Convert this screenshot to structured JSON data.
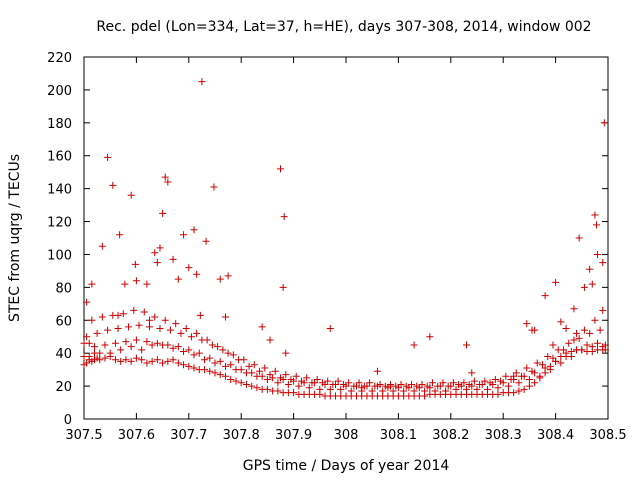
{
  "chart_data": {
    "type": "scatter",
    "title": "Rec. pdel (Lon=334, Lat=37, h=HE), days 307-308, 2014, window 002",
    "xlabel": "GPS time / Days of year 2014",
    "ylabel": "STEC from uqrg / TECUs",
    "xlim": [
      307.5,
      308.5
    ],
    "ylim": [
      0,
      220
    ],
    "xticks": [
      307.5,
      307.6,
      307.7,
      307.8,
      307.9,
      308.0,
      308.1,
      308.2,
      308.3,
      308.4,
      308.5
    ],
    "xtick_labels": [
      "307.5",
      "307.6",
      "307.7",
      "307.8",
      "307.9",
      "308",
      "308.1",
      "308.2",
      "308.3",
      "308.4",
      "308.5"
    ],
    "yticks": [
      0,
      20,
      40,
      60,
      80,
      100,
      120,
      140,
      160,
      180,
      200,
      220
    ],
    "ytick_labels": [
      "0",
      "20",
      "40",
      "60",
      "80",
      "100",
      "120",
      "140",
      "160",
      "180",
      "200",
      "220"
    ],
    "marker": "+",
    "color": "#cc0000",
    "grid": false,
    "legend": "none",
    "series": [
      {
        "name": "STEC",
        "x": [
          307.5,
          307.505,
          307.51,
          307.515,
          307.52,
          307.525,
          307.53,
          307.54,
          307.55,
          307.56,
          307.57,
          307.58,
          307.59,
          307.6,
          307.61,
          307.62,
          307.63,
          307.64,
          307.65,
          307.66,
          307.67,
          307.68,
          307.69,
          307.7,
          307.71,
          307.72,
          307.73,
          307.74,
          307.75,
          307.76,
          307.77,
          307.78,
          307.79,
          307.8,
          307.81,
          307.82,
          307.83,
          307.84,
          307.85,
          307.86,
          307.87,
          307.88,
          307.89,
          307.9,
          307.91,
          307.92,
          307.93,
          307.94,
          307.95,
          307.96,
          307.97,
          307.98,
          307.99,
          308.0,
          308.01,
          308.02,
          308.03,
          308.04,
          308.05,
          308.06,
          308.07,
          308.08,
          308.09,
          308.1,
          308.11,
          308.12,
          308.13,
          308.14,
          308.15,
          308.16,
          308.17,
          308.18,
          308.19,
          308.2,
          308.21,
          308.22,
          308.23,
          308.24,
          308.25,
          308.26,
          308.27,
          308.28,
          308.29,
          308.3,
          308.31,
          308.32,
          308.33,
          308.34,
          308.35,
          308.36,
          308.37,
          308.38,
          308.39,
          308.4,
          308.41,
          308.42,
          308.43,
          308.44,
          308.45,
          308.46,
          308.47,
          308.48,
          308.49,
          308.495,
          307.5,
          307.51,
          307.52,
          307.53,
          307.55,
          307.57,
          307.59,
          307.61,
          307.63,
          307.65,
          307.67,
          307.69,
          307.71,
          307.73,
          307.75,
          307.77,
          307.79,
          307.81,
          307.83,
          307.85,
          307.87,
          307.89,
          307.91,
          307.93,
          307.95,
          307.97,
          307.99,
          308.01,
          308.03,
          308.05,
          308.07,
          308.09,
          308.11,
          308.13,
          308.15,
          308.17,
          308.19,
          308.21,
          308.23,
          308.25,
          308.27,
          308.29,
          308.31,
          308.33,
          308.35,
          308.37,
          308.39,
          308.41,
          308.43,
          308.45,
          308.47,
          308.49,
          307.5,
          307.51,
          307.52,
          307.54,
          307.56,
          307.58,
          307.6,
          307.62,
          307.64,
          307.66,
          307.68,
          307.7,
          307.72,
          307.74,
          307.76,
          307.78,
          307.8,
          307.82,
          307.84,
          307.86,
          307.88,
          307.9,
          307.92,
          307.94,
          307.96,
          307.98,
          308.0,
          308.02,
          308.04,
          308.06,
          308.08,
          308.1,
          308.12,
          308.14,
          308.16,
          308.18,
          308.2,
          308.22,
          308.24,
          308.26,
          308.28,
          308.3,
          308.32,
          308.34,
          308.36,
          308.38,
          308.4,
          308.42,
          308.44,
          308.46,
          308.48,
          308.495,
          307.505,
          307.525,
          307.545,
          307.565,
          307.585,
          307.605,
          307.625,
          307.645,
          307.665,
          307.685,
          307.705,
          307.725,
          307.745,
          307.765,
          307.785,
          307.805,
          307.825,
          307.845,
          307.865,
          307.885,
          307.905,
          307.925,
          307.945,
          307.965,
          307.985,
          308.005,
          308.025,
          308.045,
          308.065,
          308.085,
          308.105,
          308.125,
          308.145,
          308.165,
          308.185,
          308.205,
          308.225,
          308.245,
          308.265,
          308.285,
          308.305,
          308.325,
          308.345,
          308.365,
          308.385,
          308.405,
          308.425,
          308.445,
          308.465,
          308.485,
          307.515,
          307.535,
          307.555,
          307.575,
          307.595,
          307.615,
          307.635,
          307.655,
          307.675,
          307.695,
          307.715,
          307.735,
          307.755,
          307.775,
          307.795,
          307.815,
          307.835,
          307.855,
          307.875,
          307.895,
          307.915,
          307.935,
          307.955,
          307.975,
          307.995,
          308.015,
          308.035,
          308.055,
          308.075,
          308.095,
          308.115,
          308.135,
          308.155,
          308.175,
          308.195,
          308.215,
          308.235,
          308.255,
          308.275,
          308.295,
          308.315,
          308.335,
          308.355,
          308.375,
          308.395,
          308.415,
          308.435,
          308.455,
          308.475,
          308.49,
          307.545,
          307.555,
          307.568,
          307.578,
          307.59,
          307.598,
          307.62,
          307.64,
          307.645,
          307.655,
          307.66,
          307.69,
          307.7,
          307.722,
          307.725,
          307.733,
          307.748,
          307.77,
          307.775,
          307.855,
          307.875,
          307.882,
          307.885,
          308.085,
          308.13,
          308.23,
          308.36,
          308.38,
          308.4,
          308.42,
          308.435,
          308.445,
          308.465,
          308.475,
          308.478,
          308.49,
          308.493,
          307.505,
          307.515,
          307.535,
          307.565,
          307.6,
          307.625,
          307.635,
          307.65,
          307.67,
          307.68,
          307.71,
          307.715,
          307.76,
          307.84,
          307.88,
          307.97,
          308.03,
          308.06,
          308.16,
          308.19,
          308.24,
          308.32,
          308.345,
          308.355,
          308.395,
          308.41,
          308.44,
          308.455,
          308.47,
          308.48
        ],
        "y": [
          33,
          34,
          36,
          35,
          36,
          37,
          36,
          37,
          38,
          36,
          35,
          36,
          35,
          37,
          36,
          34,
          35,
          36,
          34,
          35,
          36,
          34,
          33,
          32,
          31,
          30,
          30,
          29,
          28,
          27,
          26,
          24,
          23,
          22,
          21,
          20,
          19,
          18,
          18,
          17,
          17,
          16,
          16,
          16,
          15,
          15,
          15,
          15,
          15,
          14,
          14,
          14,
          14,
          14,
          14,
          14,
          14,
          14,
          14,
          14,
          14,
          14,
          14,
          14,
          14,
          14,
          14,
          14,
          14,
          15,
          15,
          15,
          15,
          15,
          15,
          15,
          15,
          15,
          15,
          15,
          15,
          15,
          15,
          16,
          16,
          16,
          17,
          18,
          20,
          22,
          25,
          28,
          32,
          35,
          38,
          40,
          41,
          42,
          42,
          41,
          41,
          42,
          42,
          42,
          38,
          38,
          40,
          40,
          40,
          42,
          44,
          42,
          45,
          45,
          43,
          41,
          39,
          36,
          34,
          32,
          30,
          28,
          26,
          24,
          22,
          21,
          20,
          19,
          18,
          18,
          18,
          17,
          17,
          17,
          17,
          17,
          17,
          17,
          17,
          17,
          17,
          18,
          18,
          18,
          18,
          19,
          20,
          22,
          24,
          26,
          30,
          34,
          38,
          42,
          44,
          44,
          46,
          46,
          44,
          45,
          46,
          47,
          48,
          47,
          46,
          45,
          44,
          42,
          40,
          37,
          35,
          33,
          30,
          28,
          26,
          25,
          24,
          23,
          22,
          22,
          21,
          21,
          20,
          20,
          20,
          20,
          19,
          19,
          19,
          19,
          19,
          20,
          20,
          20,
          20,
          21,
          21,
          22,
          24,
          26,
          28,
          31,
          35,
          38,
          42,
          45,
          46,
          45,
          50,
          52,
          54,
          55,
          56,
          57,
          56,
          55,
          54,
          52,
          50,
          48,
          45,
          42,
          39,
          36,
          33,
          31,
          29,
          27,
          26,
          25,
          24,
          23,
          23,
          22,
          22,
          22,
          21,
          21,
          21,
          21,
          21,
          22,
          22,
          22,
          22,
          23,
          23,
          24,
          26,
          28,
          31,
          34,
          38,
          42,
          46,
          49,
          52,
          54,
          60,
          62,
          63,
          64,
          66,
          65,
          62,
          60,
          58,
          55,
          52,
          48,
          44,
          40,
          36,
          32,
          29,
          27,
          25,
          24,
          23,
          22,
          22,
          21,
          21,
          20,
          20,
          20,
          20,
          20,
          20,
          20,
          20,
          20,
          20,
          21,
          21,
          21,
          22,
          23,
          24,
          26,
          29,
          33,
          37,
          42,
          48,
          54,
          60,
          66,
          159,
          142,
          112,
          82,
          136,
          94,
          82,
          95,
          104,
          147,
          144,
          112,
          92,
          63,
          205,
          108,
          141,
          62,
          87,
          48,
          152,
          123,
          40,
          20,
          45,
          45,
          54,
          75,
          83,
          55,
          67,
          110,
          91,
          124,
          118,
          95,
          180,
          71,
          82,
          105,
          63,
          84,
          60,
          101,
          125,
          97,
          85,
          115,
          88,
          85,
          56,
          80,
          55,
          19,
          29,
          50,
          17,
          28,
          26,
          58,
          54,
          45,
          59,
          52,
          80,
          82,
          100
        ]
      }
    ]
  }
}
